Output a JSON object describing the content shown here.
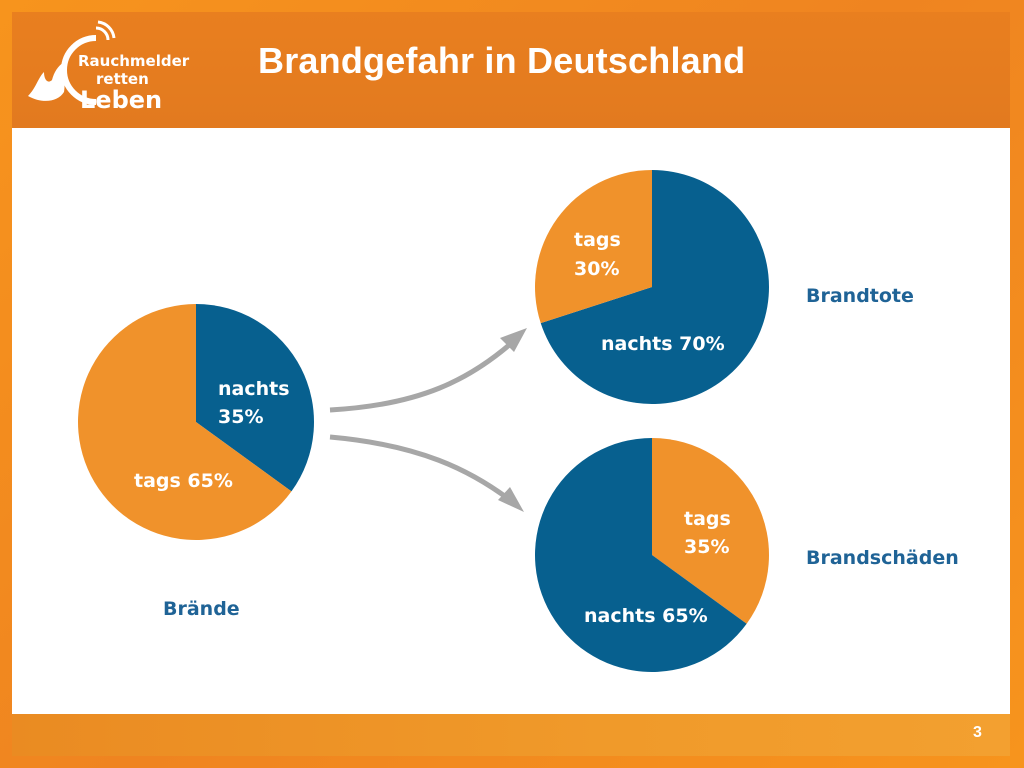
{
  "header": {
    "title": "Brandgefahr in Deutschland"
  },
  "logo": {
    "line1": "Rauchmelder",
    "line2": "retten",
    "line3": "Leben"
  },
  "footer": {
    "page_number": "3"
  },
  "colors": {
    "orange": "#f0922b",
    "blue": "#07608f",
    "title_blue": "#1f6396",
    "arrow": "#a7a7a7"
  },
  "chart_data": [
    {
      "type": "pie",
      "title": "Brände",
      "slices": [
        {
          "label": "nachts",
          "value": 35,
          "text_lines": [
            "nachts",
            "35%"
          ],
          "color": "#07608f"
        },
        {
          "label": "tags",
          "value": 65,
          "text_lines": [
            "tags 65%"
          ],
          "color": "#f0922b"
        }
      ]
    },
    {
      "type": "pie",
      "title": "Brandtote",
      "slices": [
        {
          "label": "nachts",
          "value": 70,
          "text_lines": [
            "nachts 70%"
          ],
          "color": "#07608f"
        },
        {
          "label": "tags",
          "value": 30,
          "text_lines": [
            "tags",
            "30%"
          ],
          "color": "#f0922b"
        }
      ]
    },
    {
      "type": "pie",
      "title": "Brandschäden",
      "slices": [
        {
          "label": "tags",
          "value": 35,
          "text_lines": [
            "tags",
            "35%"
          ],
          "color": "#f0922b"
        },
        {
          "label": "nachts",
          "value": 65,
          "text_lines": [
            "nachts 65%"
          ],
          "color": "#07608f"
        }
      ]
    }
  ]
}
